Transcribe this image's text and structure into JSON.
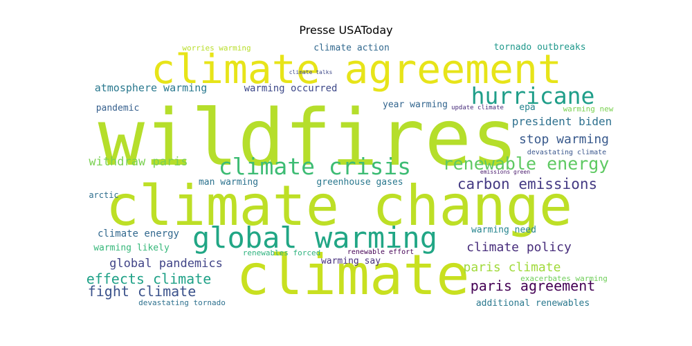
{
  "chart_data": {
    "type": "wordcloud",
    "title": "Presse USAToday",
    "background": "#ffffff",
    "palette": "viridis",
    "words": [
      {
        "text": "wildfires",
        "weight": 100,
        "color": "#b5de2b"
      },
      {
        "text": "climate change",
        "weight": 96,
        "color": "#bddf26"
      },
      {
        "text": "climate",
        "weight": 90,
        "color": "#c8e020"
      },
      {
        "text": "climate agreement",
        "weight": 70,
        "color": "#e7e419"
      },
      {
        "text": "global warming",
        "weight": 48,
        "color": "#21a685"
      },
      {
        "text": "climate crisis",
        "weight": 40,
        "color": "#3dbc74"
      },
      {
        "text": "hurricane",
        "weight": 38,
        "color": "#1f9e89"
      },
      {
        "text": "renewable energy",
        "weight": 32,
        "color": "#5ec962"
      },
      {
        "text": "carbon emissions",
        "weight": 28,
        "color": "#443a83"
      },
      {
        "text": "paris agreement",
        "weight": 24,
        "color": "#440154"
      },
      {
        "text": "climate policy",
        "weight": 22,
        "color": "#472d7b"
      },
      {
        "text": "fight climate",
        "weight": 22,
        "color": "#3b528b"
      },
      {
        "text": "effects climate",
        "weight": 22,
        "color": "#1fa187"
      },
      {
        "text": "global pandemics",
        "weight": 21,
        "color": "#414487"
      },
      {
        "text": "paris climate",
        "weight": 21,
        "color": "#a0da39"
      },
      {
        "text": "stop warming",
        "weight": 20,
        "color": "#38598c"
      },
      {
        "text": "president biden",
        "weight": 19,
        "color": "#2d708e"
      },
      {
        "text": "withdraw paris",
        "weight": 19,
        "color": "#7ad151"
      },
      {
        "text": "atmosphere warming",
        "weight": 18,
        "color": "#29788e"
      },
      {
        "text": "climate energy",
        "weight": 17,
        "color": "#31688e"
      },
      {
        "text": "warming occurred",
        "weight": 16,
        "color": "#3e4989"
      },
      {
        "text": "greenhouse gases",
        "weight": 16,
        "color": "#2a788e"
      },
      {
        "text": "man warming",
        "weight": 16,
        "color": "#2c728e"
      },
      {
        "text": "warming likely",
        "weight": 15,
        "color": "#35b779"
      },
      {
        "text": "tornado outbreaks",
        "weight": 15,
        "color": "#1f988b"
      },
      {
        "text": "additional renewables",
        "weight": 15,
        "color": "#2a788e"
      },
      {
        "text": "climate action",
        "weight": 15,
        "color": "#31688e"
      },
      {
        "text": "warming need",
        "weight": 15,
        "color": "#25848e"
      },
      {
        "text": "year warming",
        "weight": 14,
        "color": "#32658e"
      },
      {
        "text": "warming say",
        "weight": 14,
        "color": "#472f7d"
      },
      {
        "text": "pandemic",
        "weight": 14,
        "color": "#355f8d"
      },
      {
        "text": "epa",
        "weight": 14,
        "color": "#26828e"
      },
      {
        "text": "arctic",
        "weight": 13,
        "color": "#2e6e8e"
      },
      {
        "text": "worries warming",
        "weight": 13,
        "color": "#b8de29"
      },
      {
        "text": "devastating tornado",
        "weight": 12,
        "color": "#2d708e"
      },
      {
        "text": "warming new",
        "weight": 12,
        "color": "#7ad151"
      },
      {
        "text": "exacerbates warming",
        "weight": 12,
        "color": "#6ece58"
      },
      {
        "text": "renewables forced",
        "weight": 12,
        "color": "#2db27d"
      },
      {
        "text": "devastating climate",
        "weight": 10,
        "color": "#39568c"
      },
      {
        "text": "renewable effort",
        "weight": 9,
        "color": "#440154"
      },
      {
        "text": "update climate",
        "weight": 8,
        "color": "#472c7a"
      },
      {
        "text": "emissions green",
        "weight": 8,
        "color": "#481a6c"
      },
      {
        "text": "climate talks",
        "weight": 7,
        "color": "#3e4989"
      }
    ]
  }
}
